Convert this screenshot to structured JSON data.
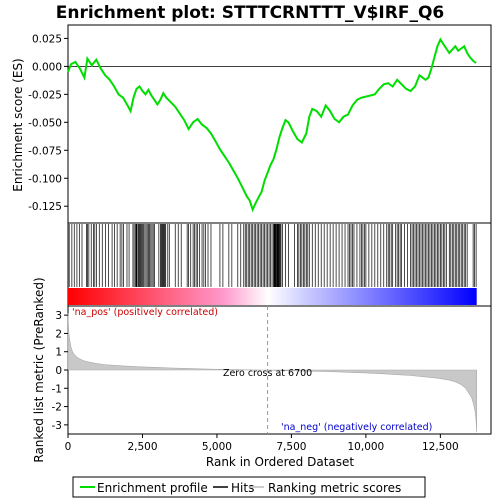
{
  "chart_data": {
    "type": "line",
    "title": "Enrichment plot: STTTCRNTTT_V$IRF_Q6",
    "top_panel": {
      "ylabel": "Enrichment score (ES)",
      "ylim": [
        -0.14,
        0.037
      ],
      "yticks": [
        "0.025",
        "0.000",
        "-0.025",
        "-0.050",
        "-0.075",
        "-0.100",
        "-0.125"
      ],
      "ytick_values": [
        0.025,
        0.0,
        -0.025,
        -0.05,
        -0.075,
        -0.1,
        -0.125
      ],
      "line_color": "#00dd00",
      "es_profile": {
        "x": [
          0,
          100,
          250,
          400,
          550,
          650,
          800,
          950,
          1100,
          1250,
          1400,
          1550,
          1700,
          1850,
          2000,
          2100,
          2200,
          2300,
          2400,
          2500,
          2600,
          2700,
          2800,
          2900,
          3000,
          3100,
          3200,
          3300,
          3450,
          3600,
          3750,
          3900,
          4050,
          4200,
          4350,
          4500,
          4650,
          4800,
          4950,
          5100,
          5250,
          5400,
          5550,
          5700,
          5850,
          6000,
          6100,
          6200,
          6300,
          6400,
          6500,
          6600,
          6700,
          6800,
          6900,
          7000,
          7100,
          7200,
          7300,
          7400,
          7550,
          7700,
          7850,
          8000,
          8100,
          8200,
          8350,
          8500,
          8650,
          8800,
          8950,
          9100,
          9250,
          9400,
          9550,
          9700,
          9850,
          10000,
          10150,
          10300,
          10450,
          10600,
          10750,
          10900,
          11050,
          11200,
          11350,
          11500,
          11650,
          11800,
          11900,
          12000,
          12100,
          12200,
          12300,
          12400,
          12500,
          12600,
          12700,
          12800,
          12900,
          13000,
          13100,
          13200,
          13300,
          13400,
          13500,
          13600,
          13700
        ],
        "y": [
          -0.005,
          0.002,
          0.004,
          -0.002,
          -0.01,
          0.007,
          0.001,
          0.006,
          -0.002,
          -0.008,
          -0.012,
          -0.018,
          -0.025,
          -0.028,
          -0.035,
          -0.04,
          -0.028,
          -0.02,
          -0.018,
          -0.022,
          -0.025,
          -0.021,
          -0.026,
          -0.03,
          -0.034,
          -0.03,
          -0.024,
          -0.028,
          -0.032,
          -0.036,
          -0.042,
          -0.048,
          -0.056,
          -0.05,
          -0.047,
          -0.052,
          -0.055,
          -0.06,
          -0.067,
          -0.074,
          -0.08,
          -0.086,
          -0.093,
          -0.1,
          -0.108,
          -0.116,
          -0.12,
          -0.128,
          -0.122,
          -0.117,
          -0.112,
          -0.102,
          -0.095,
          -0.088,
          -0.083,
          -0.074,
          -0.063,
          -0.055,
          -0.048,
          -0.05,
          -0.058,
          -0.065,
          -0.068,
          -0.06,
          -0.045,
          -0.038,
          -0.04,
          -0.045,
          -0.035,
          -0.04,
          -0.047,
          -0.05,
          -0.045,
          -0.043,
          -0.035,
          -0.03,
          -0.028,
          -0.027,
          -0.026,
          -0.025,
          -0.02,
          -0.016,
          -0.015,
          -0.018,
          -0.012,
          -0.016,
          -0.02,
          -0.022,
          -0.018,
          -0.008,
          -0.01,
          -0.012,
          -0.01,
          -0.002,
          0.008,
          0.018,
          0.024,
          0.02,
          0.016,
          0.012,
          0.015,
          0.018,
          0.014,
          0.016,
          0.018,
          0.012,
          0.008,
          0.005,
          0.003
        ]
      }
    },
    "hits_panel": {
      "hit_positions": [
        40,
        130,
        210,
        300,
        380,
        470,
        620,
        650,
        700,
        780,
        860,
        900,
        960,
        1050,
        1150,
        1260,
        1360,
        1480,
        1560,
        1650,
        1750,
        1810,
        1860,
        1980,
        2050,
        2180,
        2220,
        2270,
        2290,
        2310,
        2350,
        2380,
        2410,
        2440,
        2470,
        2500,
        2540,
        2580,
        2620,
        2660,
        2700,
        2740,
        2780,
        2820,
        2860,
        2900,
        3050,
        3100,
        3130,
        3160,
        3190,
        3220,
        3250,
        3280,
        3350,
        3400,
        3600,
        3700,
        3800,
        4000,
        4050,
        4120,
        4200,
        4250,
        4300,
        4350,
        4420,
        4500,
        4560,
        4620,
        4700,
        4800,
        5100,
        5200,
        5400,
        5500,
        5700,
        5800,
        5900,
        5950,
        6000,
        6050,
        6100,
        6150,
        6200,
        6250,
        6300,
        6350,
        6400,
        6450,
        6500,
        6550,
        6600,
        6650,
        6700,
        6750,
        6800,
        6850,
        6900,
        6920,
        6940,
        6960,
        6980,
        7000,
        7020,
        7040,
        7060,
        7080,
        7100,
        7120,
        7150,
        7200,
        7300,
        7400,
        7600,
        7700,
        7750,
        7800,
        7850,
        7900,
        7950,
        8000,
        8050,
        8100,
        8200,
        8300,
        8400,
        8500,
        8600,
        8700,
        8800,
        8900,
        9000,
        9100,
        9200,
        9300,
        9400,
        9450,
        9500,
        9550,
        9600,
        9700,
        9800,
        9850,
        9900,
        9950,
        10000,
        10100,
        10200,
        10300,
        10400,
        10500,
        10600,
        10700,
        10750,
        10800,
        10850,
        10900,
        11000,
        11050,
        11100,
        11150,
        11200,
        11300,
        11400,
        11500,
        11550,
        11600,
        11650,
        11700,
        11750,
        11800,
        11850,
        11900,
        11950,
        12000,
        12050,
        12100,
        12150,
        12200,
        12250,
        12300,
        12350,
        12400,
        12450,
        12500,
        12550,
        12600,
        12650,
        12700,
        12800,
        12850,
        12900,
        12950,
        13000,
        13050,
        13100,
        13150,
        13200,
        13250,
        13300,
        13350,
        13400,
        13600,
        13650,
        13700
      ],
      "gradient_colors": [
        "#ff0000",
        "#ff99cc",
        "#ffffff",
        "#ccccff",
        "#0000ff"
      ]
    },
    "bottom_panel": {
      "ylabel": "Ranked list metric (PreRanked)",
      "ylim": [
        -3.5,
        3.5
      ],
      "yticks": [
        "3",
        "2",
        "1",
        "0",
        "-1",
        "-2",
        "-3"
      ],
      "ytick_values": [
        3,
        2,
        1,
        0,
        -1,
        -2,
        -3
      ],
      "metric": {
        "x": [
          0,
          10,
          30,
          60,
          100,
          150,
          220,
          300,
          400,
          550,
          700,
          900,
          1200,
          1600,
          2000,
          2500,
          3000,
          3500,
          4000,
          4500,
          5000,
          5500,
          6000,
          6500,
          6700,
          7000,
          7500,
          8000,
          8500,
          9000,
          9500,
          10000,
          10500,
          11000,
          11500,
          12000,
          12400,
          12800,
          13000,
          13200,
          13350,
          13450,
          13550,
          13620,
          13670,
          13700,
          13720
        ],
        "y": [
          3.1,
          2.6,
          2.0,
          1.6,
          1.25,
          1.0,
          0.82,
          0.7,
          0.6,
          0.5,
          0.43,
          0.37,
          0.3,
          0.25,
          0.21,
          0.17,
          0.14,
          0.11,
          0.09,
          0.06,
          0.04,
          0.02,
          0.01,
          0.0,
          0.0,
          -0.02,
          -0.04,
          -0.06,
          -0.08,
          -0.1,
          -0.13,
          -0.16,
          -0.2,
          -0.25,
          -0.3,
          -0.38,
          -0.45,
          -0.55,
          -0.65,
          -0.8,
          -1.0,
          -1.25,
          -1.5,
          -1.9,
          -2.3,
          -2.8,
          -3.4
        ]
      },
      "zero_cross_label": "Zero cross at 6700",
      "zero_cross": 6700,
      "pos_label": "'na_pos' (positively correlated)",
      "neg_label": "'na_neg' (negatively correlated)",
      "pos_color": "#cc0000",
      "neg_color": "#0000cc"
    },
    "x_axis": {
      "xlabel": "Rank in Ordered Dataset",
      "xlim": [
        0,
        14200
      ],
      "xticks": [
        "0",
        "2,500",
        "5,000",
        "7,500",
        "10,000",
        "12,500"
      ],
      "xtick_values": [
        0,
        2500,
        5000,
        7500,
        10000,
        12500
      ]
    },
    "legend": {
      "items": [
        {
          "label": "Enrichment profile",
          "color": "#00dd00"
        },
        {
          "label": "Hits",
          "color": "#000000"
        },
        {
          "label": "Ranking metric scores",
          "color": "#bbbbbb"
        }
      ]
    }
  }
}
